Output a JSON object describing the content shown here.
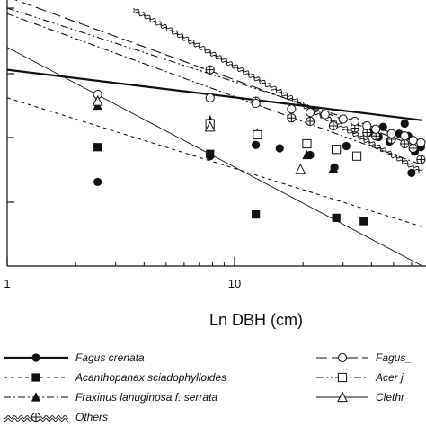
{
  "chart_data": {
    "type": "scatter",
    "title": "",
    "xlabel": "Ln DBH (cm)",
    "ylabel": "",
    "x_scale": "log",
    "xlim": [
      1,
      67
    ],
    "ylim": [
      -0.2,
      2.1
    ],
    "x_tick_labels": [
      "1",
      "10"
    ],
    "grid": false,
    "legend_position": "bottom",
    "series": [
      {
        "name": "Fagus crenata",
        "marker": "filled-circle",
        "line_style": "solid-thick",
        "x": [
          2.5,
          7.8,
          12.4,
          15.8,
          21.5,
          27.5,
          31,
          39,
          43,
          45,
          48,
          53,
          56,
          58,
          62,
          66,
          60
        ],
        "y": [
          0.55,
          0.78,
          0.88,
          0.85,
          0.79,
          0.68,
          0.87,
          0.99,
          0.95,
          1.04,
          0.91,
          0.98,
          1.07,
          0.96,
          0.82,
          0.86,
          0.63
        ]
      },
      {
        "name": "Acanthopanax sciadophylloides",
        "marker": "filled-square",
        "line_style": "dash",
        "x": [
          2.5,
          7.8,
          12.4,
          28,
          37
        ],
        "y": [
          0.86,
          0.8,
          0.26,
          0.23,
          0.2
        ]
      },
      {
        "name": "Fraxinus lanuginosa f. serrata",
        "marker": "filled-triangle",
        "line_style": "dash-dot",
        "x": [
          2.5,
          7.8,
          12.6,
          20.8,
          27.2
        ],
        "y": [
          1.23,
          1.1,
          0.98,
          0.79,
          0.67
        ]
      },
      {
        "name": "Others",
        "marker": "crossed-circle",
        "line_style": "wavy",
        "x": [
          7.8,
          12.4,
          17.8,
          21.5,
          27.2,
          33.8,
          38.2,
          41.8,
          49,
          56,
          61,
          66
        ],
        "y": [
          1.55,
          1.27,
          1.12,
          1.09,
          1.05,
          1.03,
          0.99,
          0.96,
          0.93,
          0.89,
          0.85,
          0.75
        ]
      },
      {
        "name": "Fagus_",
        "marker": "open-circle",
        "line_style": "long-dash",
        "x": [
          2.5,
          7.8,
          12.4,
          17.8,
          21.5,
          25,
          30,
          33.8,
          38.2,
          41.8,
          49,
          56,
          61,
          66
        ],
        "y": [
          1.33,
          1.3,
          1.25,
          1.2,
          1.17,
          1.15,
          1.11,
          1.09,
          1.05,
          1.02,
          0.98,
          0.96,
          0.92,
          0.9
        ]
      },
      {
        "name": "Acer j",
        "marker": "open-square",
        "line_style": "dash-dot-dot",
        "x": [
          7.8,
          12.6,
          20.8,
          28,
          34.5
        ],
        "y": [
          1.07,
          0.97,
          0.89,
          0.84,
          0.78
        ]
      },
      {
        "name": "Clethr",
        "marker": "open-triangle",
        "line_style": "thin-solid",
        "x": [
          2.5,
          7.8,
          19.5
        ],
        "y": [
          1.27,
          1.04,
          0.66
        ]
      }
    ],
    "fit_lines": [
      {
        "series": "Fagus crenata",
        "x": [
          1,
          67
        ],
        "y": [
          1.55,
          1.1
        ]
      },
      {
        "series": "Acanthopanax sciadophylloides",
        "x": [
          1,
          67
        ],
        "y": [
          1.3,
          0.15
        ]
      },
      {
        "series": "Fraxinus lanuginosa f. serrata",
        "x": [
          1,
          67
        ],
        "y": [
          2.05,
          0.7
        ]
      },
      {
        "series": "Others",
        "x": [
          3.6,
          67
        ],
        "y": [
          2.1,
          0.65
        ]
      },
      {
        "series": "Fagus_",
        "x": [
          1,
          67
        ],
        "y": [
          2.2,
          0.85
        ]
      },
      {
        "series": "Acer j",
        "x": [
          1,
          67
        ],
        "y": [
          2.1,
          0.9
        ]
      },
      {
        "series": "Clethr",
        "x": [
          1,
          67
        ],
        "y": [
          1.75,
          -0.2
        ]
      }
    ]
  }
}
